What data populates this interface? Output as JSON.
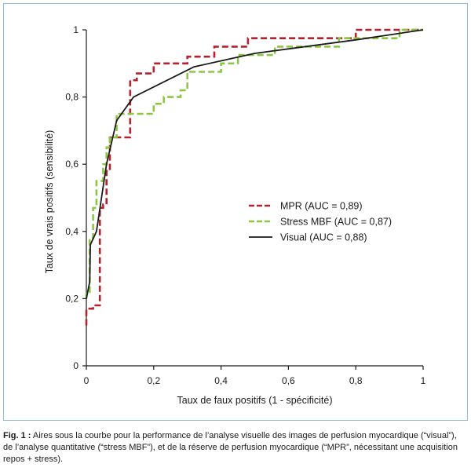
{
  "caption": {
    "label": "Fig. 1 :",
    "text": " Aires sous la courbe pour la performance de l’analyse visuelle des images de perfusion myocardique (“visual”), de l’analyse quantitative (“stress MBF”), et de la réserve de perfusion myocardique (“MPR”, nécessitant une acquisition repos + stress)."
  },
  "chart_data": {
    "type": "line",
    "title": "",
    "xlabel": "Taux de faux positifs (1 - spécificité)",
    "ylabel": "Taux de vrais positifs (sensibilité)",
    "xlim": [
      0,
      1
    ],
    "ylim": [
      0,
      1
    ],
    "x_ticks": [
      "0",
      "0,2",
      "0,4",
      "0,6",
      "0,8",
      "1"
    ],
    "y_ticks": [
      "0",
      "0,2",
      "0,4",
      "0,6",
      "0,8",
      "1"
    ],
    "grid": false,
    "legend_position": "center-right",
    "series": [
      {
        "name": "MPR (AUC = 0,89)",
        "color": "#b5222e",
        "style": "dashed",
        "points": [
          [
            0,
            0.12
          ],
          [
            0,
            0.17
          ],
          [
            0.02,
            0.17
          ],
          [
            0.02,
            0.18
          ],
          [
            0.04,
            0.18
          ],
          [
            0.04,
            0.47
          ],
          [
            0.05,
            0.47
          ],
          [
            0.05,
            0.48
          ],
          [
            0.06,
            0.48
          ],
          [
            0.06,
            0.58
          ],
          [
            0.07,
            0.58
          ],
          [
            0.07,
            0.68
          ],
          [
            0.13,
            0.68
          ],
          [
            0.13,
            0.85
          ],
          [
            0.15,
            0.85
          ],
          [
            0.15,
            0.87
          ],
          [
            0.2,
            0.87
          ],
          [
            0.2,
            0.9
          ],
          [
            0.3,
            0.9
          ],
          [
            0.3,
            0.92
          ],
          [
            0.38,
            0.92
          ],
          [
            0.38,
            0.95
          ],
          [
            0.48,
            0.95
          ],
          [
            0.48,
            0.975
          ],
          [
            0.8,
            0.975
          ],
          [
            0.8,
            1
          ],
          [
            1,
            1
          ]
        ]
      },
      {
        "name": "Stress MBF (AUC = 0,87)",
        "color": "#8dc63f",
        "style": "dashed",
        "points": [
          [
            0,
            0.2
          ],
          [
            0,
            0.22
          ],
          [
            0.01,
            0.22
          ],
          [
            0.01,
            0.38
          ],
          [
            0.02,
            0.38
          ],
          [
            0.02,
            0.47
          ],
          [
            0.03,
            0.47
          ],
          [
            0.03,
            0.55
          ],
          [
            0.05,
            0.55
          ],
          [
            0.05,
            0.6
          ],
          [
            0.06,
            0.6
          ],
          [
            0.06,
            0.65
          ],
          [
            0.07,
            0.65
          ],
          [
            0.07,
            0.68
          ],
          [
            0.09,
            0.68
          ],
          [
            0.09,
            0.75
          ],
          [
            0.2,
            0.75
          ],
          [
            0.2,
            0.78
          ],
          [
            0.23,
            0.78
          ],
          [
            0.23,
            0.8
          ],
          [
            0.28,
            0.8
          ],
          [
            0.28,
            0.82
          ],
          [
            0.3,
            0.82
          ],
          [
            0.3,
            0.875
          ],
          [
            0.4,
            0.875
          ],
          [
            0.4,
            0.9
          ],
          [
            0.45,
            0.9
          ],
          [
            0.45,
            0.925
          ],
          [
            0.56,
            0.925
          ],
          [
            0.56,
            0.95
          ],
          [
            0.75,
            0.95
          ],
          [
            0.75,
            0.975
          ],
          [
            0.93,
            0.975
          ],
          [
            0.93,
            1
          ],
          [
            1,
            1
          ]
        ]
      },
      {
        "name": "Visual (AUC = 0,88)",
        "color": "#1a1a1a",
        "style": "solid",
        "points": [
          [
            0,
            0.2
          ],
          [
            0.01,
            0.25
          ],
          [
            0.012,
            0.36
          ],
          [
            0.03,
            0.4
          ],
          [
            0.045,
            0.5
          ],
          [
            0.06,
            0.6
          ],
          [
            0.09,
            0.73
          ],
          [
            0.14,
            0.8
          ],
          [
            0.32,
            0.89
          ],
          [
            0.5,
            0.93
          ],
          [
            0.8,
            0.97
          ],
          [
            1,
            1
          ]
        ]
      }
    ]
  }
}
